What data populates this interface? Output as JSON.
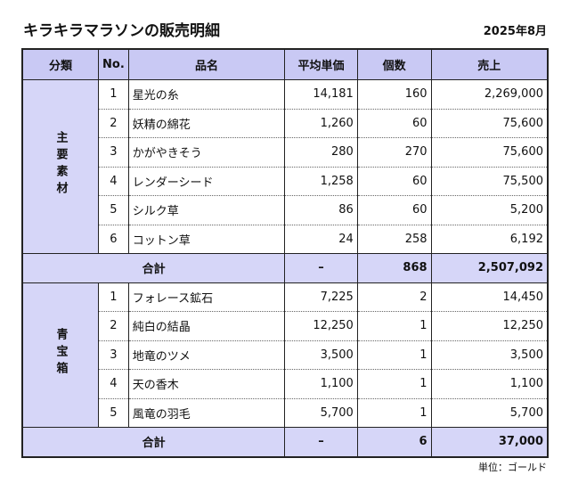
{
  "header": {
    "title": "キラキラマラソンの販売明細",
    "date": "2025年8月"
  },
  "table": {
    "columns": [
      "分類",
      "No.",
      "品名",
      "平均単価",
      "個数",
      "売上"
    ],
    "groups": [
      {
        "category": "主要素材",
        "rows": [
          [
            "1",
            "星光の糸",
            "14,181",
            "160",
            "2,269,000"
          ],
          [
            "2",
            "妖精の綿花",
            "1,260",
            "60",
            "75,600"
          ],
          [
            "3",
            "かがやきそう",
            "280",
            "270",
            "75,600"
          ],
          [
            "4",
            "レンダーシード",
            "1,258",
            "60",
            "75,500"
          ],
          [
            "5",
            "シルク草",
            "86",
            "60",
            "5,200"
          ],
          [
            "6",
            "コットン草",
            "24",
            "258",
            "6,192"
          ]
        ],
        "subtotal": {
          "label": "合計",
          "price": "–",
          "qty": "868",
          "sales": "2,507,092"
        }
      },
      {
        "category": "青宝箱",
        "rows": [
          [
            "1",
            "フォレース鉱石",
            "7,225",
            "2",
            "14,450"
          ],
          [
            "2",
            "純白の結晶",
            "12,250",
            "1",
            "12,250"
          ],
          [
            "3",
            "地竜のツメ",
            "3,500",
            "1",
            "3,500"
          ],
          [
            "4",
            "天の香木",
            "1,100",
            "1",
            "1,100"
          ],
          [
            "5",
            "風竜の羽毛",
            "5,700",
            "1",
            "5,700"
          ]
        ],
        "subtotal": {
          "label": "合計",
          "price": "–",
          "qty": "6",
          "sales": "37,000"
        }
      }
    ]
  },
  "footer": {
    "note": "単位：ゴールド"
  }
}
